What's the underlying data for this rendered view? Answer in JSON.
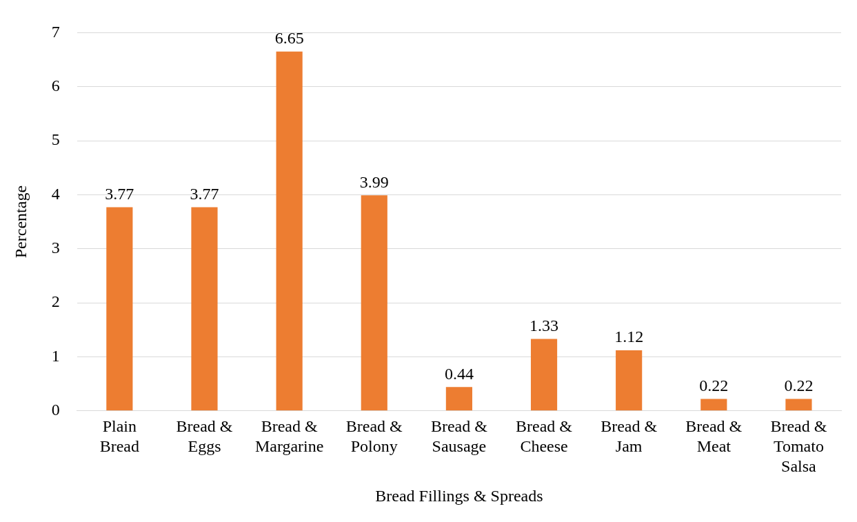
{
  "chart_data": {
    "type": "bar",
    "xlabel": "Bread Fillings & Spreads",
    "ylabel": "Percentage",
    "categories": [
      "Plain Bread",
      "Bread & Eggs",
      "Bread & Margarine",
      "Bread & Polony",
      "Bread & Sausage",
      "Bread & Cheese",
      "Bread & Jam",
      "Bread & Meat",
      "Bread & Tomato Salsa"
    ],
    "values": [
      3.77,
      3.77,
      6.65,
      3.99,
      0.44,
      1.33,
      1.12,
      0.22,
      0.22
    ],
    "color": "#ed7d31",
    "ylim": [
      0,
      7
    ],
    "yticks": [
      0,
      1,
      2,
      3,
      4,
      5,
      6,
      7
    ],
    "grid": "y",
    "data_labels": true,
    "legend": false
  }
}
